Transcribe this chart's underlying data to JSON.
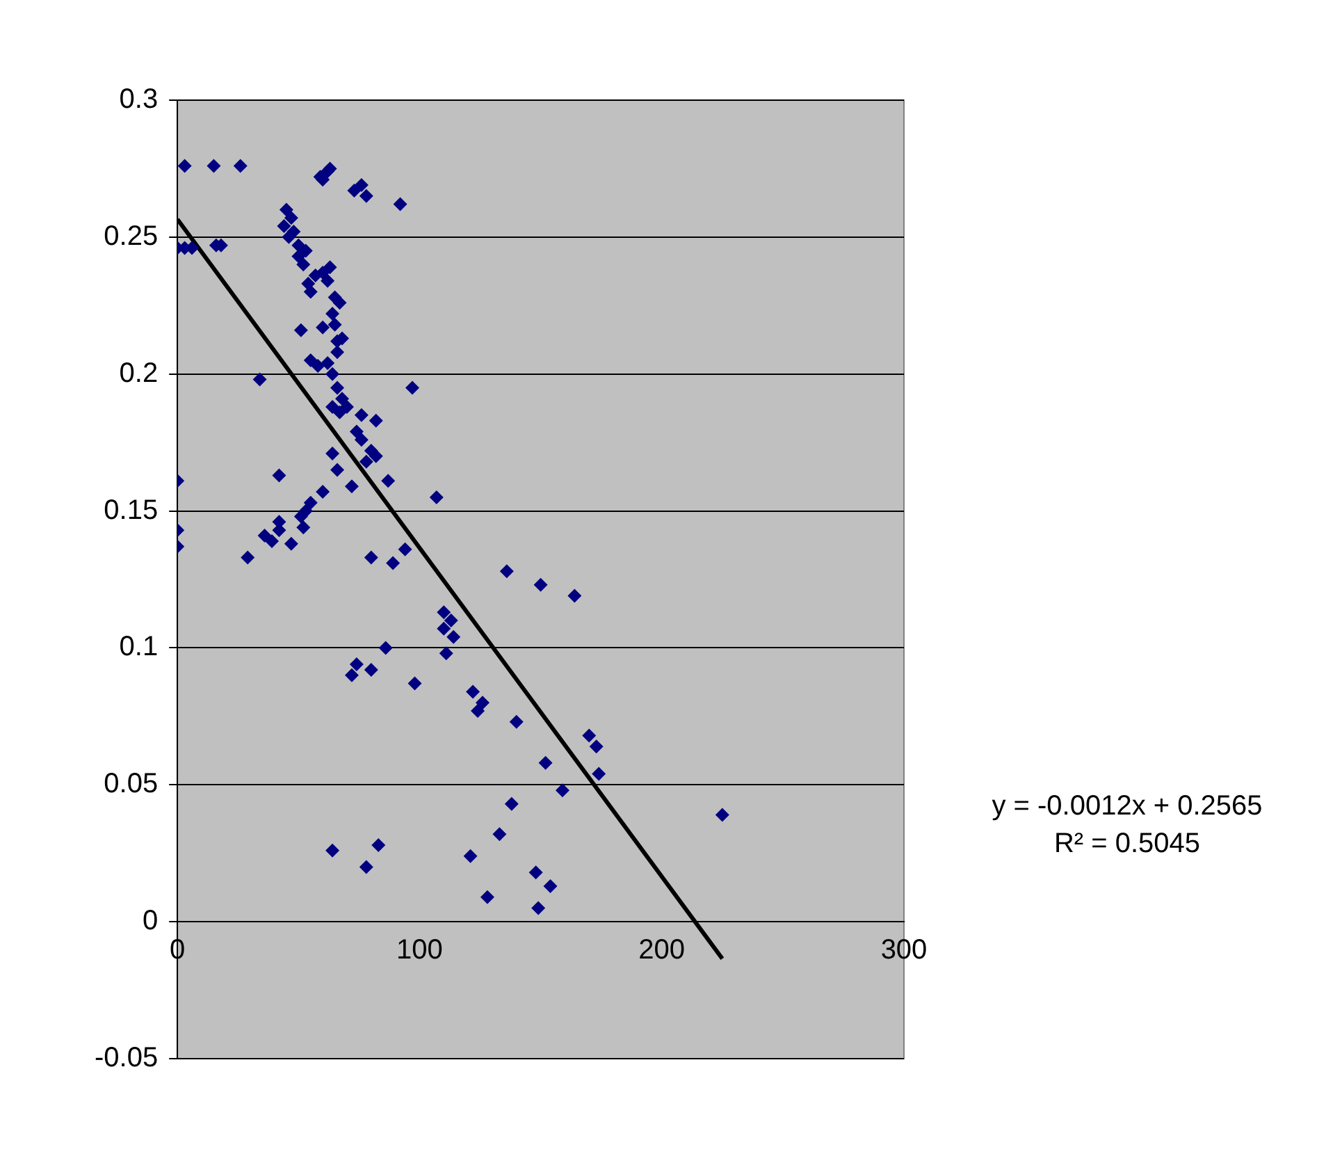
{
  "chart_data": {
    "type": "scatter",
    "marker": "diamond",
    "grid": "y",
    "legend": false,
    "xlim": [
      0,
      300
    ],
    "xticks": [
      0,
      100,
      200,
      300
    ],
    "ylim": [
      -0.05,
      0.3
    ],
    "yticks": [
      -0.05,
      0,
      0.05,
      0.1,
      0.15,
      0.2,
      0.25,
      0.3
    ],
    "annotations": [
      "y = -0.0012x + 0.2565",
      "R² = 0.5045"
    ],
    "series": [
      {
        "color": "#000080",
        "x": [
          3,
          15,
          26,
          0,
          3,
          6,
          16,
          18,
          59,
          62,
          63,
          60,
          73,
          76,
          78,
          92,
          45,
          47,
          44,
          46,
          48,
          50,
          50,
          52,
          53,
          55,
          54,
          57,
          60,
          63,
          62,
          65,
          67,
          64,
          65,
          66,
          68,
          60,
          51,
          55,
          58,
          62,
          66,
          64,
          66,
          68,
          70,
          64,
          67,
          34,
          97,
          76,
          82,
          74,
          76,
          80,
          82,
          78,
          64,
          66,
          87,
          107,
          72,
          60,
          42,
          0,
          0,
          0,
          29,
          36,
          39,
          42,
          42,
          47,
          51,
          53,
          55,
          52,
          80,
          89,
          94,
          136,
          150,
          164,
          110,
          113,
          110,
          114,
          111,
          74,
          72,
          80,
          86,
          98,
          122,
          126,
          124,
          140,
          170,
          173,
          174,
          152,
          159,
          138,
          225,
          133,
          148,
          154,
          121,
          128,
          149,
          64,
          83,
          78
        ],
        "values": [
          0.276,
          0.276,
          0.276,
          0.246,
          0.246,
          0.246,
          0.247,
          0.247,
          0.272,
          0.274,
          0.275,
          0.271,
          0.267,
          0.269,
          0.265,
          0.262,
          0.26,
          0.257,
          0.254,
          0.25,
          0.252,
          0.247,
          0.243,
          0.24,
          0.245,
          0.23,
          0.233,
          0.236,
          0.237,
          0.239,
          0.234,
          0.228,
          0.226,
          0.222,
          0.218,
          0.212,
          0.213,
          0.217,
          0.216,
          0.205,
          0.203,
          0.204,
          0.208,
          0.2,
          0.195,
          0.191,
          0.188,
          0.188,
          0.186,
          0.198,
          0.195,
          0.185,
          0.183,
          0.179,
          0.176,
          0.172,
          0.17,
          0.168,
          0.171,
          0.165,
          0.161,
          0.155,
          0.159,
          0.157,
          0.163,
          0.161,
          0.143,
          0.137,
          0.133,
          0.141,
          0.139,
          0.143,
          0.146,
          0.138,
          0.148,
          0.15,
          0.153,
          0.144,
          0.133,
          0.131,
          0.136,
          0.128,
          0.123,
          0.119,
          0.113,
          0.11,
          0.107,
          0.104,
          0.098,
          0.094,
          0.09,
          0.092,
          0.1,
          0.087,
          0.084,
          0.08,
          0.077,
          0.073,
          0.068,
          0.064,
          0.054,
          0.058,
          0.048,
          0.043,
          0.039,
          0.032,
          0.018,
          0.013,
          0.024,
          0.009,
          0.005,
          0.026,
          0.028,
          0.02
        ]
      },
      {
        "type": "line",
        "color": "#000000",
        "marker": "none",
        "x": [
          0,
          225
        ],
        "values": [
          0.2565,
          -0.0135
        ]
      }
    ]
  }
}
